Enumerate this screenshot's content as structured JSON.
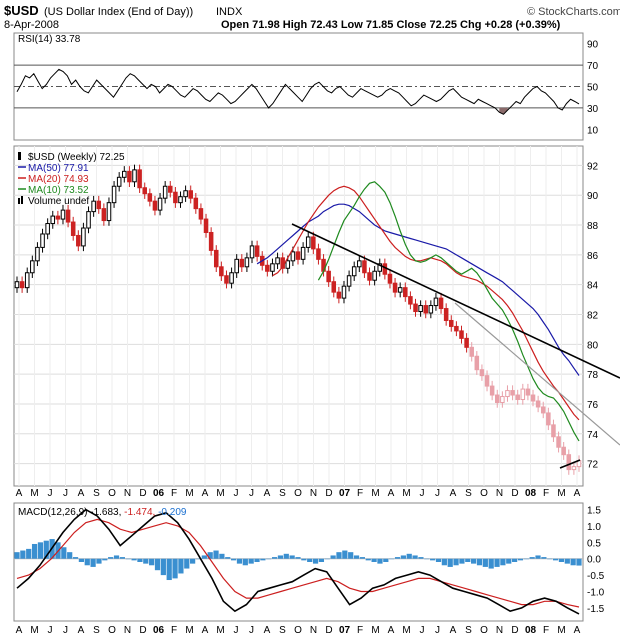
{
  "header": {
    "symbol": "$USD",
    "name": "(US Dollar Index (End of Day))",
    "exchange": "INDX",
    "date": "8-Apr-2008",
    "quote": "Open 71.98   High 72.43   Low 71.85   Close 72.25   Chg +0.28 (+0.39%)",
    "watermark": "© StockCharts.com"
  },
  "colors": {
    "ma50": "#1a1aa8",
    "ma20": "#cc1f1f",
    "ma10": "#1f8a1f",
    "rsi_fill": "#8a6a6a",
    "macd_hist": "#3a8fd0",
    "price_up": "#000000",
    "price_down": "#cc2222",
    "price_recent": "#e8a0a8",
    "trendline": "#000000",
    "trendline_light": "#999999"
  },
  "chart_data": [
    {
      "type": "line",
      "panel": "rsi",
      "label": "RSI(14) 33.78",
      "yticks": [
        10,
        30,
        50,
        70,
        90
      ],
      "ylim": [
        0,
        100
      ],
      "levels": [
        30,
        50,
        70
      ],
      "series": [
        {
          "name": "RSI(14)",
          "values": [
            45,
            52,
            60,
            58,
            62,
            55,
            48,
            52,
            58,
            62,
            66,
            64,
            60,
            52,
            56,
            50,
            46,
            44,
            50,
            56,
            52,
            48,
            44,
            40,
            46,
            52,
            58,
            62,
            60,
            56,
            52,
            48,
            52,
            50,
            44,
            48,
            52,
            50,
            46,
            42,
            40,
            44,
            48,
            46,
            42,
            38,
            36,
            40,
            44,
            42,
            38,
            34,
            36,
            40,
            44,
            48,
            52,
            48,
            42,
            36,
            30,
            34,
            40,
            46,
            52,
            48,
            44,
            40,
            36,
            42,
            48,
            52,
            54,
            50,
            46,
            44,
            48,
            50,
            46,
            42,
            40,
            44,
            48,
            46,
            44,
            42,
            40,
            42,
            46,
            48,
            46,
            44,
            40,
            36,
            32,
            34,
            38,
            42,
            40,
            38,
            36,
            38,
            42,
            46,
            48,
            44,
            40,
            38,
            36,
            34,
            38,
            36,
            34,
            32,
            30,
            26,
            24,
            28,
            32,
            36,
            34,
            40,
            44,
            48,
            50,
            46,
            44,
            40,
            36,
            30,
            28,
            34,
            38,
            36,
            33.78
          ]
        }
      ]
    },
    {
      "type": "line",
      "panel": "price",
      "xlabel": "",
      "ylabel": "",
      "yticks": [
        72,
        74,
        76,
        78,
        80,
        82,
        84,
        86,
        88,
        90,
        92
      ],
      "ylim": [
        70.5,
        93.3
      ],
      "x_labels": [
        "A",
        "M",
        "J",
        "J",
        "A",
        "S",
        "O",
        "N",
        "D",
        "06",
        "F",
        "M",
        "A",
        "M",
        "J",
        "J",
        "A",
        "S",
        "O",
        "N",
        "D",
        "07",
        "F",
        "M",
        "A",
        "M",
        "J",
        "J",
        "A",
        "S",
        "O",
        "N",
        "D",
        "08",
        "F",
        "M",
        "A"
      ],
      "legend": [
        {
          "text": "$USD (Weekly) 72.25",
          "key": "price"
        },
        {
          "text": "MA(50) 77.91",
          "key": "ma50"
        },
        {
          "text": "MA(20) 74.93",
          "key": "ma20"
        },
        {
          "text": "MA(10) 73.52",
          "key": "ma10"
        },
        {
          "text": "Volume undef",
          "key": "volume"
        }
      ],
      "series": [
        {
          "name": "$USD (Weekly)",
          "values": [
            84.2,
            83.8,
            84.8,
            85.6,
            86.5,
            87.4,
            88.1,
            88.6,
            88.4,
            89.0,
            88.2,
            87.3,
            86.6,
            87.8,
            88.9,
            89.6,
            89.1,
            88.3,
            89.5,
            90.6,
            91.2,
            91.6,
            90.9,
            91.7,
            90.5,
            90.1,
            89.6,
            89.0,
            89.8,
            90.6,
            90.2,
            89.5,
            89.9,
            90.3,
            89.8,
            89.1,
            88.4,
            87.5,
            86.3,
            85.2,
            84.6,
            84.1,
            84.8,
            85.7,
            85.2,
            85.8,
            86.6,
            85.9,
            85.3,
            84.9,
            85.4,
            85.8,
            85.1,
            85.6,
            86.2,
            85.7,
            86.5,
            87.2,
            86.4,
            85.7,
            84.9,
            84.2,
            83.5,
            83.1,
            83.9,
            84.6,
            85.2,
            85.6,
            84.8,
            84.3,
            84.9,
            85.4,
            84.7,
            84.1,
            83.5,
            83.8,
            83.2,
            82.7,
            82.2,
            82.6,
            82.1,
            82.6,
            83.1,
            82.4,
            81.6,
            81.2,
            80.9,
            80.4,
            79.8,
            79.2,
            78.3,
            77.9,
            77.2,
            76.6,
            76.1,
            76.5,
            76.9,
            76.6,
            76.3,
            77.0,
            76.6,
            76.2,
            75.8,
            75.4,
            74.6,
            73.8,
            73.1,
            72.6,
            71.6,
            71.8,
            72.2
          ]
        },
        {
          "name": "MA(50)",
          "values": [
            85.4,
            85.6,
            85.8,
            86.1,
            86.4,
            86.7,
            87.0,
            87.3,
            87.6,
            87.9,
            88.2,
            88.4,
            88.6,
            88.9,
            89.1,
            89.3,
            89.4,
            89.4,
            89.3,
            89.1,
            88.9,
            88.6,
            88.3,
            88.0,
            87.8,
            87.6,
            87.5,
            87.4,
            87.3,
            87.2,
            87.1,
            87.0,
            86.9,
            86.8,
            86.7,
            86.6,
            86.5,
            86.4,
            86.2,
            86.0,
            85.8,
            85.6,
            85.4,
            85.2,
            85.0,
            84.8,
            84.6,
            84.4,
            84.2,
            83.9,
            83.6,
            83.3,
            83.0,
            82.7,
            82.4,
            82.0,
            81.5,
            81.0,
            80.4,
            79.8,
            79.3,
            78.9,
            78.4,
            77.91
          ]
        },
        {
          "name": "MA(20)",
          "values": [
            84.6,
            84.8,
            85.2,
            85.8,
            86.4,
            87.0,
            87.6,
            88.2,
            88.7,
            89.2,
            89.6,
            90.0,
            90.3,
            90.5,
            90.6,
            90.5,
            90.3,
            89.9,
            89.4,
            88.9,
            88.4,
            87.9,
            87.4,
            86.9,
            86.5,
            86.2,
            85.9,
            85.7,
            85.6,
            85.6,
            85.7,
            85.8,
            85.7,
            85.6,
            85.4,
            85.1,
            84.8,
            84.6,
            84.5,
            84.4,
            84.3,
            84.1,
            83.9,
            83.6,
            83.3,
            83.0,
            82.6,
            82.1,
            81.5,
            80.9,
            80.2,
            79.5,
            78.8,
            78.2,
            77.7,
            77.2,
            76.8,
            76.3,
            75.8,
            75.3,
            74.93
          ]
        },
        {
          "name": "MA(10)",
          "values": [
            84.3,
            84.9,
            85.7,
            86.6,
            87.5,
            88.3,
            88.8,
            89.3,
            89.9,
            90.4,
            90.8,
            90.9,
            90.6,
            90.2,
            89.5,
            88.6,
            87.6,
            86.7,
            86.0,
            85.6,
            85.5,
            85.6,
            85.8,
            86.0,
            85.8,
            85.5,
            85.2,
            84.9,
            84.7,
            84.9,
            85.1,
            84.8,
            84.3,
            83.7,
            83.1,
            82.7,
            82.3,
            81.7,
            81.0,
            80.2,
            79.3,
            78.5,
            77.7,
            77.1,
            76.7,
            76.5,
            76.4,
            76.0,
            75.5,
            74.8,
            74.1,
            73.52
          ]
        }
      ]
    },
    {
      "type": "line",
      "panel": "macd",
      "label": "MACD(12,26,9) -1.683, -1.474, -0.209",
      "yticks": [
        -1.5,
        -1.0,
        -0.5,
        0.0,
        0.5,
        1.0,
        1.5
      ],
      "ylim": [
        -1.9,
        1.7
      ],
      "x_labels": [
        "A",
        "M",
        "J",
        "J",
        "A",
        "S",
        "O",
        "N",
        "D",
        "06",
        "F",
        "M",
        "A",
        "M",
        "J",
        "J",
        "A",
        "S",
        "O",
        "N",
        "D",
        "07",
        "F",
        "M",
        "A",
        "M",
        "J",
        "J",
        "A",
        "S",
        "O",
        "N",
        "D",
        "08",
        "F",
        "M",
        "A"
      ],
      "series": [
        {
          "name": "MACD",
          "values": [
            -0.9,
            -0.6,
            -0.2,
            0.3,
            0.8,
            1.2,
            1.5,
            1.3,
            0.9,
            0.4,
            0.7,
            1.0,
            1.3,
            1.4,
            1.1,
            0.6,
            0.0,
            -0.6,
            -1.3,
            -1.6,
            -1.4,
            -1.0,
            -0.9,
            -0.8,
            -0.7,
            -0.5,
            -0.3,
            -0.4,
            -0.9,
            -1.4,
            -1.2,
            -0.9,
            -0.8,
            -0.6,
            -0.5,
            -0.4,
            -0.5,
            -0.7,
            -0.9,
            -1.0,
            -1.1,
            -1.2,
            -1.4,
            -1.6,
            -1.5,
            -1.3,
            -1.2,
            -1.3,
            -1.5,
            -1.683
          ]
        },
        {
          "name": "Signal",
          "values": [
            -0.6,
            -0.5,
            -0.3,
            0.0,
            0.4,
            0.8,
            1.1,
            1.2,
            1.1,
            0.9,
            0.8,
            0.9,
            1.0,
            1.1,
            1.0,
            0.8,
            0.4,
            -0.1,
            -0.6,
            -1.0,
            -1.2,
            -1.2,
            -1.1,
            -1.0,
            -0.9,
            -0.8,
            -0.7,
            -0.6,
            -0.7,
            -0.9,
            -1.0,
            -1.0,
            -0.9,
            -0.8,
            -0.7,
            -0.6,
            -0.6,
            -0.7,
            -0.8,
            -0.9,
            -1.0,
            -1.1,
            -1.2,
            -1.3,
            -1.4,
            -1.4,
            -1.3,
            -1.3,
            -1.4,
            -1.474
          ]
        },
        {
          "name": "Histogram",
          "values": [
            0.2,
            0.25,
            0.3,
            0.45,
            0.5,
            0.55,
            0.6,
            0.5,
            0.35,
            0.2,
            0.05,
            -0.1,
            -0.2,
            -0.25,
            -0.15,
            -0.05,
            0.05,
            0.1,
            0.05,
            0.0,
            -0.05,
            -0.1,
            -0.15,
            -0.2,
            -0.35,
            -0.5,
            -0.65,
            -0.6,
            -0.45,
            -0.3,
            -0.15,
            0.0,
            0.1,
            0.2,
            0.25,
            0.15,
            0.05,
            -0.05,
            -0.15,
            -0.2,
            -0.15,
            -0.1,
            -0.05,
            0.0,
            0.05,
            0.1,
            0.15,
            0.1,
            0.05,
            -0.05,
            -0.1,
            -0.15,
            -0.1,
            0.0,
            0.1,
            0.2,
            0.25,
            0.2,
            0.1,
            0.05,
            -0.05,
            -0.1,
            -0.15,
            -0.1,
            0.0,
            0.05,
            0.1,
            0.15,
            0.1,
            0.05,
            0.0,
            -0.05,
            -0.1,
            -0.2,
            -0.25,
            -0.2,
            -0.15,
            -0.1,
            -0.15,
            -0.2,
            -0.25,
            -0.3,
            -0.25,
            -0.2,
            -0.15,
            -0.1,
            -0.05,
            0.0,
            0.05,
            0.1,
            0.05,
            0.0,
            -0.05,
            -0.1,
            -0.15,
            -0.2,
            -0.209
          ]
        }
      ]
    }
  ]
}
